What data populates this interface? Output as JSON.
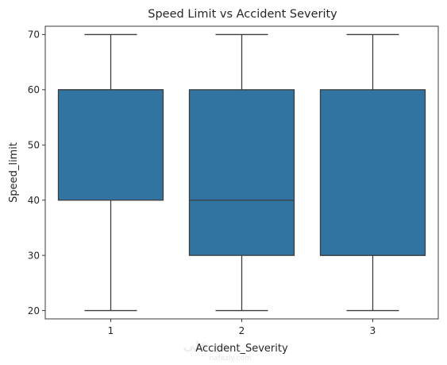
{
  "chart_data": {
    "type": "box",
    "title": "Speed Limit vs Accident Severity",
    "xlabel": "Accident_Severity",
    "ylabel": "Speed_limit",
    "categories": [
      "1",
      "2",
      "3"
    ],
    "boxes": [
      {
        "category": "1",
        "whisker_low": 20,
        "q1": 40,
        "median": 60,
        "q3": 60,
        "whisker_high": 70
      },
      {
        "category": "2",
        "whisker_low": 20,
        "q1": 30,
        "median": 40,
        "q3": 60,
        "whisker_high": 70
      },
      {
        "category": "3",
        "whisker_low": 20,
        "q1": 30,
        "median": 30,
        "q3": 60,
        "whisker_high": 70
      }
    ],
    "ylim": [
      18.5,
      71.5
    ],
    "yticks": [
      20,
      30,
      40,
      50,
      60,
      70
    ],
    "grid": false,
    "colors": {
      "box_fill": "#3274a1",
      "line": "#3d3d3d",
      "axes": "#262626"
    }
  },
  "watermark": {
    "text": "نفع قلي",
    "subtext": "nafezly.com"
  }
}
